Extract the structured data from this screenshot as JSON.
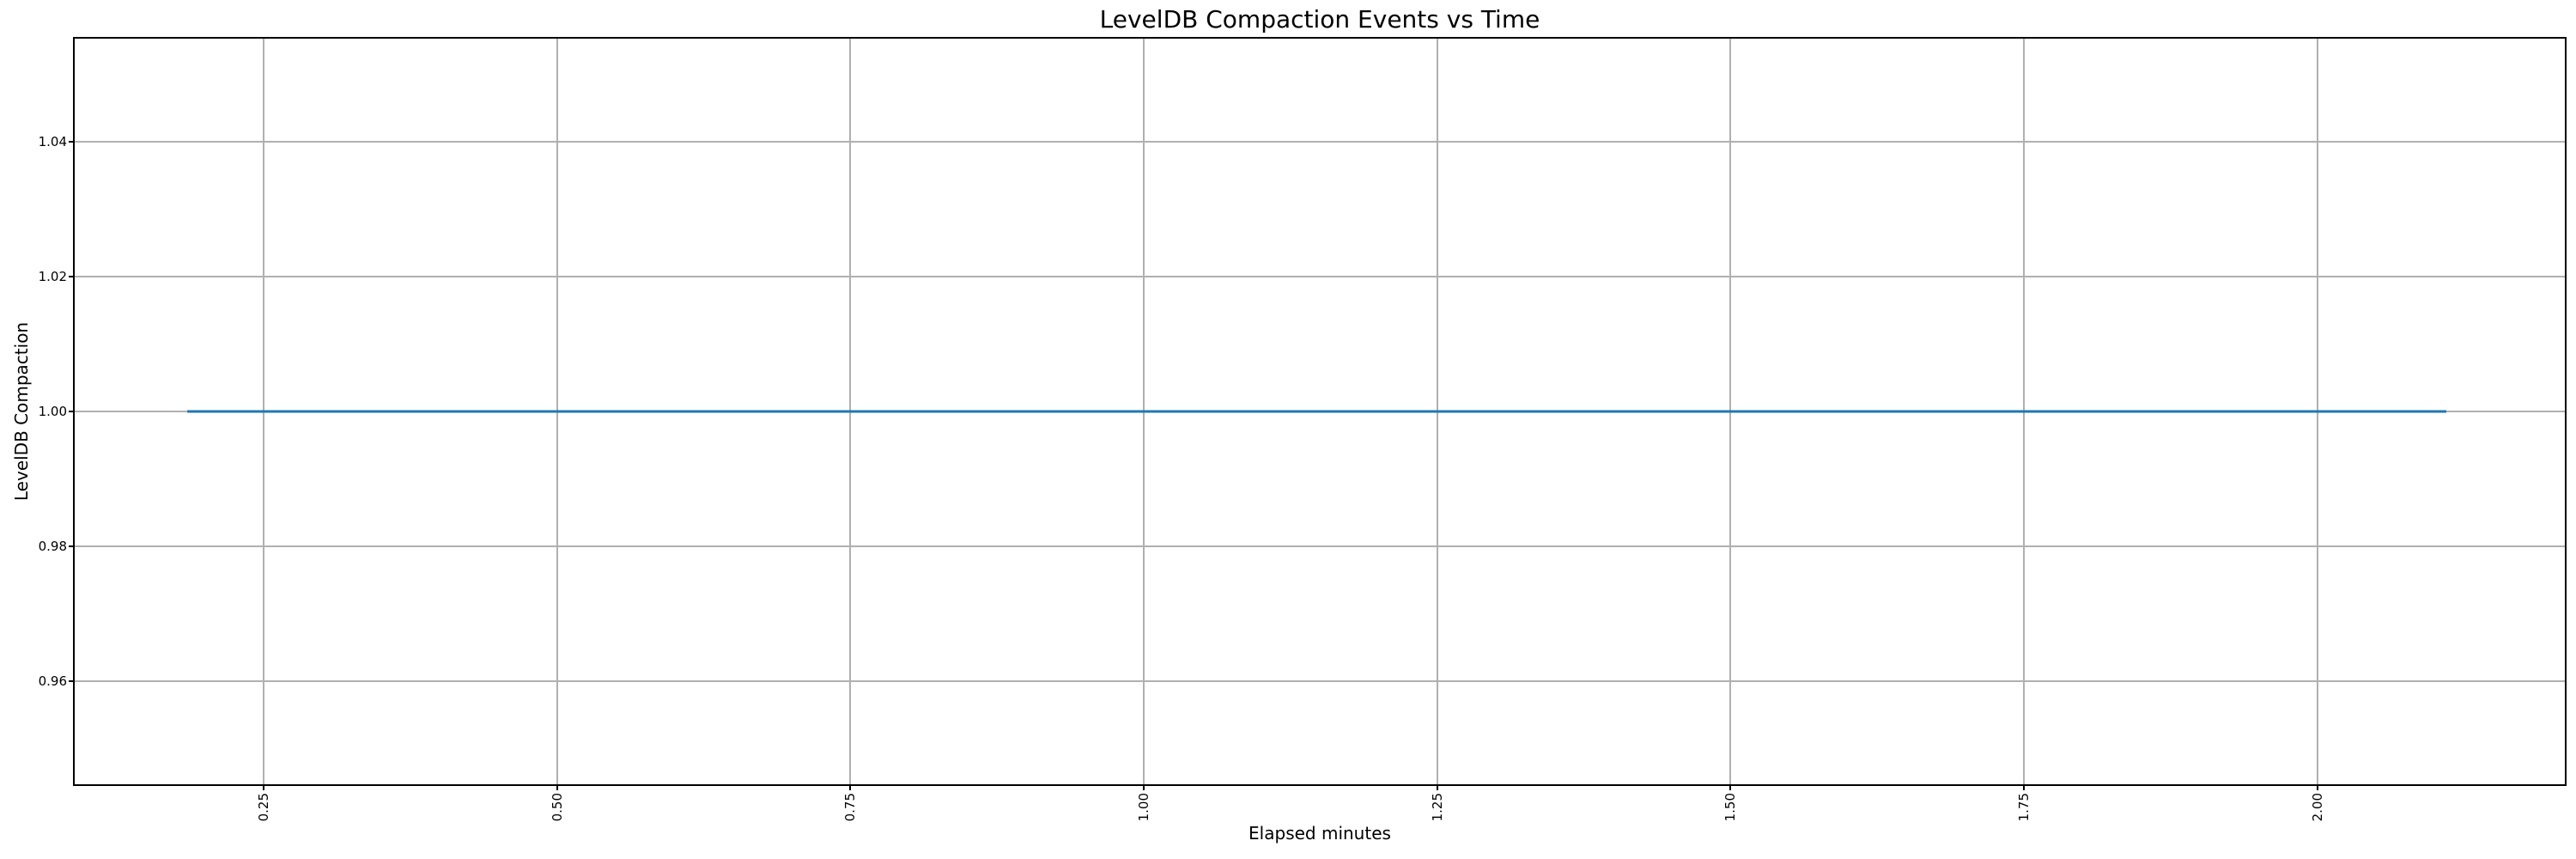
{
  "chart_data": {
    "type": "line",
    "title": "LevelDB Compaction Events vs Time",
    "xlabel": "Elapsed minutes",
    "ylabel": "LevelDB Compaction",
    "xlim": [
      0.089,
      2.211
    ],
    "ylim": [
      0.9447,
      1.0553
    ],
    "x_ticks": [
      0.25,
      0.5,
      0.75,
      1.0,
      1.25,
      1.5,
      1.75,
      2.0
    ],
    "x_tick_labels": [
      "0.25",
      "0.50",
      "0.75",
      "1.00",
      "1.25",
      "1.50",
      "1.75",
      "2.00"
    ],
    "y_ticks": [
      0.96,
      0.98,
      1.0,
      1.02,
      1.04
    ],
    "y_tick_labels": [
      "0.96",
      "0.98",
      "1.00",
      "1.02",
      "1.04"
    ],
    "grid": true,
    "legend": "none",
    "x_tick_rotation": 90,
    "series": [
      {
        "name": "LevelDB Compaction",
        "color": "#1f77b4",
        "x": [
          0.185,
          2.11
        ],
        "y": [
          1.0,
          1.0
        ]
      }
    ]
  },
  "colors": {
    "background": "#ffffff",
    "grid": "#b0b0b0",
    "spine": "#000000",
    "text": "#000000",
    "line": "#1f77b4"
  }
}
